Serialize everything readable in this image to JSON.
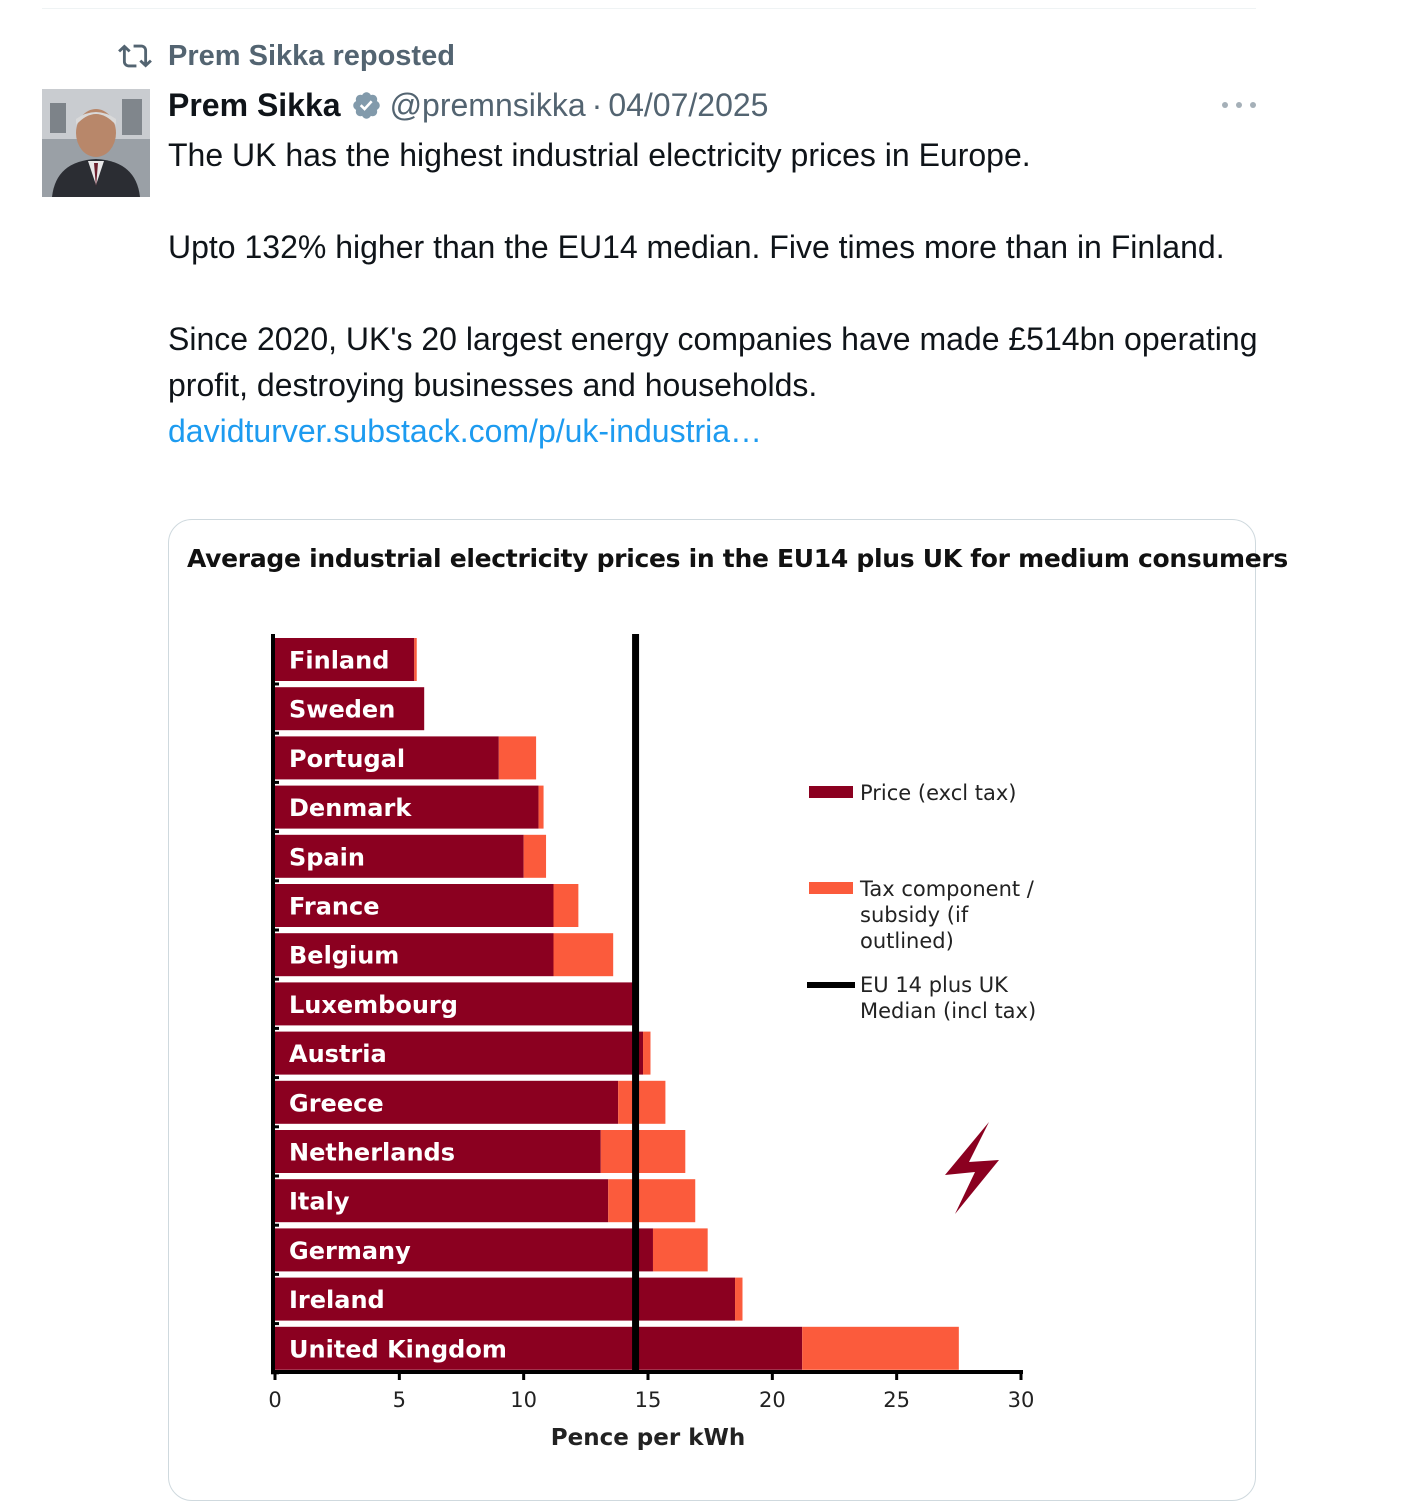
{
  "repost": {
    "text": "Prem Sikka reposted"
  },
  "author": {
    "name": "Prem Sikka",
    "handle": "@premnsikka",
    "separator": "·",
    "date": "04/07/2025"
  },
  "tweet": {
    "p1": "The UK has the highest industrial electricity prices in Europe.",
    "p2": "Upto 132% higher than the EU14 median. Five times more than in Finland.",
    "p3": "Since 2020, UK's 20 largest energy companies have made £514bn operating profit, destroying businesses and households.",
    "link": "davidturver.substack.com/p/uk-industria…"
  },
  "colors": {
    "price": "#8b0020",
    "tax": "#fb5b3c",
    "median": "#000000",
    "link": "#1d9bf0",
    "muted": "#536471"
  },
  "icons": {
    "repost": "repost-icon",
    "verified": "verified-badge-icon",
    "more": "more-icon",
    "lightning": "lightning-icon"
  },
  "chart_data": {
    "type": "bar",
    "orientation": "horizontal",
    "stacked": true,
    "title": "Average industrial electricity prices in the EU14 plus UK for medium consumers",
    "xlabel": "Pence per kWh",
    "xlim": [
      0,
      30
    ],
    "xticks": [
      "0",
      "5",
      "10",
      "15",
      "20",
      "25",
      "30"
    ],
    "categories": [
      "Finland",
      "Sweden",
      "Portugal",
      "Denmark",
      "Spain",
      "France",
      "Belgium",
      "Luxembourg",
      "Austria",
      "Greece",
      "Netherlands",
      "Italy",
      "Germany",
      "Ireland",
      "United Kingdom"
    ],
    "series": [
      {
        "name": "Price (excl tax)",
        "values": [
          5.6,
          6.0,
          9.0,
          10.6,
          10.0,
          11.2,
          11.2,
          14.5,
          14.8,
          13.8,
          13.1,
          13.4,
          15.2,
          18.5,
          21.2
        ]
      },
      {
        "name": "Tax component / subsidy (if outlined)",
        "values": [
          0.1,
          0.0,
          1.5,
          0.2,
          0.9,
          1.0,
          2.4,
          0.0,
          0.3,
          1.9,
          3.4,
          3.5,
          2.2,
          0.3,
          6.3
        ]
      }
    ],
    "median": {
      "name": "EU 14 plus UK Median (incl tax)",
      "value": 14.5
    },
    "legend_position": "right"
  }
}
